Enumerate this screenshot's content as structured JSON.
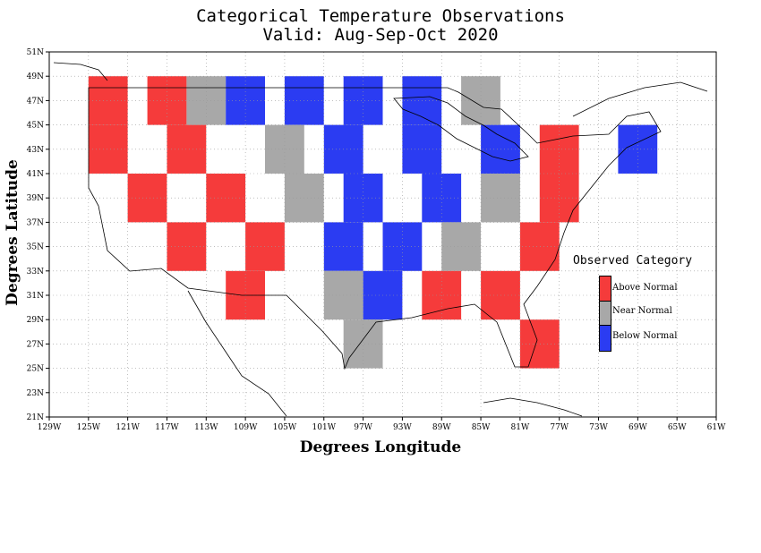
{
  "title": "Categorical Temperature Observations",
  "subtitle": "Valid: Aug-Sep-Oct 2020",
  "axes": {
    "x_label": "Degrees Longitude",
    "y_label": "Degrees Latitude",
    "x_ticks": [
      "129W",
      "125W",
      "121W",
      "117W",
      "113W",
      "109W",
      "105W",
      "101W",
      "97W",
      "93W",
      "89W",
      "85W",
      "81W",
      "77W",
      "73W",
      "69W",
      "65W",
      "61W"
    ],
    "y_ticks": [
      "51N",
      "49N",
      "47N",
      "45N",
      "43N",
      "41N",
      "39N",
      "37N",
      "35N",
      "33N",
      "31N",
      "29N",
      "27N",
      "25N",
      "23N",
      "21N"
    ]
  },
  "legend": {
    "title": "Observed Category",
    "items": [
      {
        "label": "Above Normal",
        "color": "#f53b3b"
      },
      {
        "label": "Near Normal",
        "color": "#a8a8a8"
      },
      {
        "label": "Below Normal",
        "color": "#2b3cf2"
      }
    ]
  },
  "chart_data": {
    "type": "heatmap",
    "title": "Categorical Temperature Observations",
    "subtitle": "Valid: Aug-Sep-Oct 2020",
    "xlabel": "Degrees Longitude",
    "ylabel": "Degrees Latitude",
    "xlim": [
      -129,
      -61
    ],
    "ylim": [
      21,
      51
    ],
    "grid": true,
    "legend_placement": "right",
    "categories": [
      "Above Normal",
      "Near Normal",
      "Below Normal"
    ],
    "cell_size_deg": 2,
    "cells": [
      {
        "lon": -125,
        "lat": 47,
        "category": "Above Normal"
      },
      {
        "lon": -119,
        "lat": 47,
        "category": "Above Normal"
      },
      {
        "lon": -115,
        "lat": 47,
        "category": "Near Normal"
      },
      {
        "lon": -111,
        "lat": 47,
        "category": "Below Normal"
      },
      {
        "lon": -105,
        "lat": 47,
        "category": "Below Normal"
      },
      {
        "lon": -99,
        "lat": 47,
        "category": "Below Normal"
      },
      {
        "lon": -93,
        "lat": 47,
        "category": "Below Normal"
      },
      {
        "lon": -87,
        "lat": 47,
        "category": "Near Normal"
      },
      {
        "lon": -125,
        "lat": 43,
        "category": "Above Normal"
      },
      {
        "lon": -117,
        "lat": 43,
        "category": "Above Normal"
      },
      {
        "lon": -107,
        "lat": 43,
        "category": "Near Normal"
      },
      {
        "lon": -101,
        "lat": 43,
        "category": "Below Normal"
      },
      {
        "lon": -93,
        "lat": 43,
        "category": "Below Normal"
      },
      {
        "lon": -85,
        "lat": 43,
        "category": "Below Normal"
      },
      {
        "lon": -79,
        "lat": 43,
        "category": "Above Normal"
      },
      {
        "lon": -71,
        "lat": 43,
        "category": "Below Normal"
      },
      {
        "lon": -121,
        "lat": 39,
        "category": "Above Normal"
      },
      {
        "lon": -113,
        "lat": 39,
        "category": "Above Normal"
      },
      {
        "lon": -105,
        "lat": 39,
        "category": "Near Normal"
      },
      {
        "lon": -99,
        "lat": 39,
        "category": "Below Normal"
      },
      {
        "lon": -91,
        "lat": 39,
        "category": "Below Normal"
      },
      {
        "lon": -85,
        "lat": 39,
        "category": "Near Normal"
      },
      {
        "lon": -79,
        "lat": 39,
        "category": "Above Normal"
      },
      {
        "lon": -117,
        "lat": 35,
        "category": "Above Normal"
      },
      {
        "lon": -109,
        "lat": 35,
        "category": "Above Normal"
      },
      {
        "lon": -101,
        "lat": 35,
        "category": "Below Normal"
      },
      {
        "lon": -95,
        "lat": 35,
        "category": "Below Normal"
      },
      {
        "lon": -89,
        "lat": 35,
        "category": "Near Normal"
      },
      {
        "lon": -81,
        "lat": 35,
        "category": "Above Normal"
      },
      {
        "lon": -111,
        "lat": 31,
        "category": "Above Normal"
      },
      {
        "lon": -101,
        "lat": 31,
        "category": "Near Normal"
      },
      {
        "lon": -97,
        "lat": 31,
        "category": "Below Normal"
      },
      {
        "lon": -91,
        "lat": 31,
        "category": "Above Normal"
      },
      {
        "lon": -85,
        "lat": 31,
        "category": "Above Normal"
      },
      {
        "lon": -99,
        "lat": 27,
        "category": "Near Normal"
      },
      {
        "lon": -81,
        "lat": 27,
        "category": "Above Normal"
      }
    ]
  }
}
